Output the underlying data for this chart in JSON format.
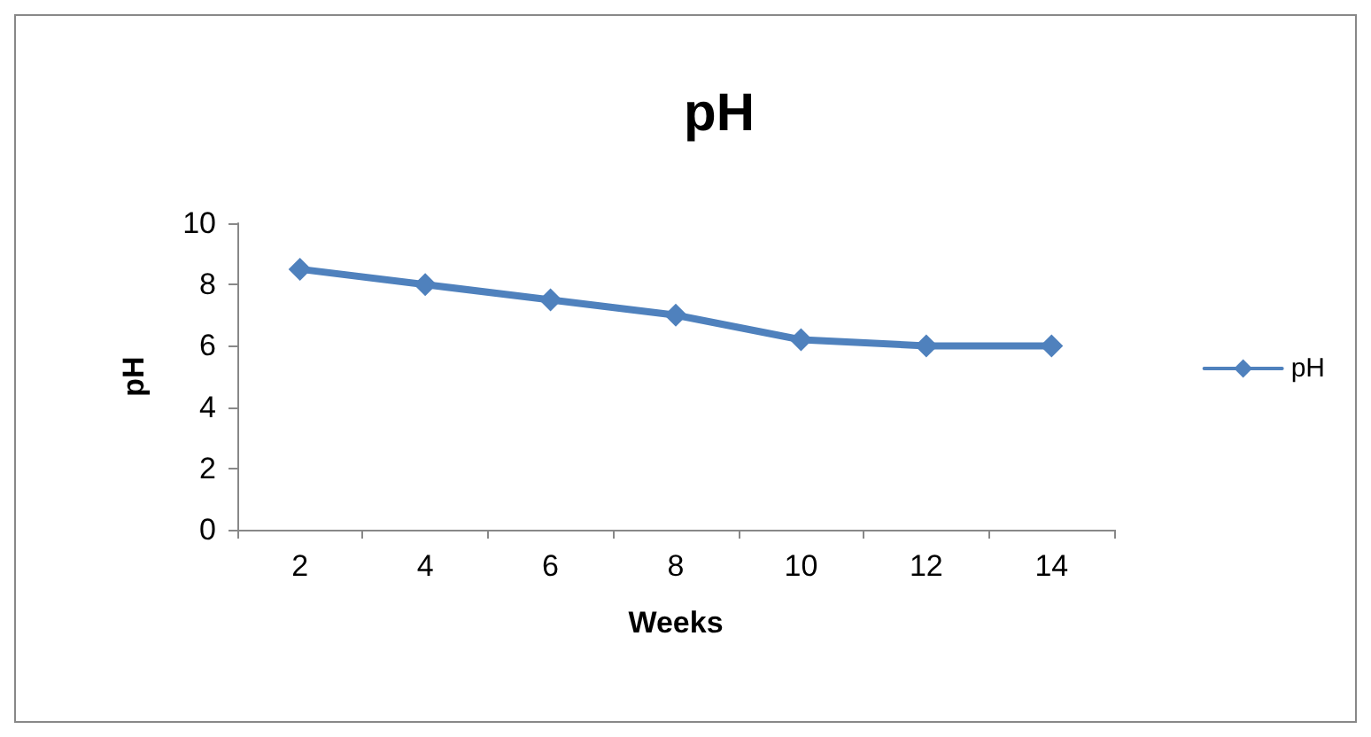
{
  "chart_data": {
    "type": "line",
    "title": "pH",
    "xlabel": "Weeks",
    "ylabel": "pH",
    "categories": [
      "2",
      "4",
      "6",
      "8",
      "10",
      "12",
      "14"
    ],
    "series": [
      {
        "name": "pH",
        "color": "#4f81bd",
        "values": [
          8.5,
          8,
          7.5,
          7,
          6.2,
          6,
          6
        ]
      }
    ],
    "ylim": [
      0,
      10
    ],
    "yticks": [
      0,
      2,
      4,
      6,
      8,
      10
    ],
    "grid": false,
    "legend": "right",
    "marker": "diamond",
    "line_style": "solid"
  }
}
